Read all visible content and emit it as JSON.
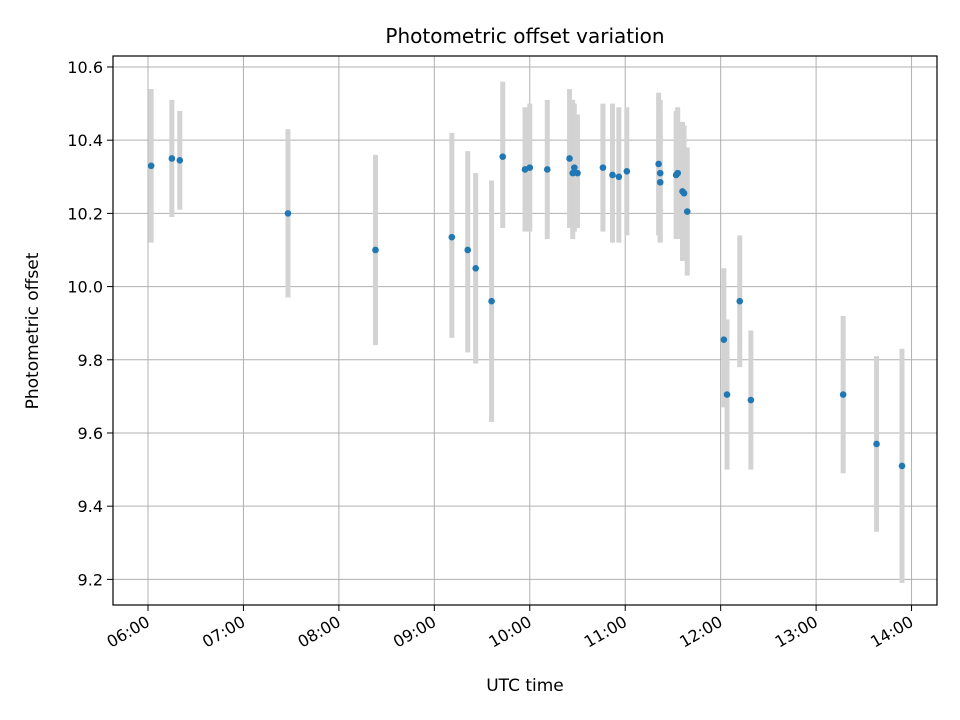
{
  "chart_data": {
    "type": "scatter",
    "title": "Photometric offset variation",
    "xlabel": "UTC time",
    "ylabel": "Photometric offset",
    "x_tick_labels": [
      "06:00",
      "07:00",
      "08:00",
      "09:00",
      "10:00",
      "11:00",
      "12:00",
      "13:00",
      "14:00"
    ],
    "y_tick_labels": [
      "9.2",
      "9.4",
      "9.6",
      "9.8",
      "10.0",
      "10.2",
      "10.4",
      "10.6"
    ],
    "xlim": [
      "05:38",
      "14:16"
    ],
    "ylim": [
      9.13,
      10.63
    ],
    "grid": true,
    "marker_color": "#1f77b4",
    "errorbar_color": "#d3d3d3",
    "points": [
      {
        "x": "06:02",
        "y": 10.33,
        "y_lo": 10.12,
        "y_hi": 10.54
      },
      {
        "x": "06:15",
        "y": 10.35,
        "y_lo": 10.19,
        "y_hi": 10.51
      },
      {
        "x": "06:20",
        "y": 10.345,
        "y_lo": 10.21,
        "y_hi": 10.48
      },
      {
        "x": "07:28",
        "y": 10.2,
        "y_lo": 9.97,
        "y_hi": 10.43
      },
      {
        "x": "08:23",
        "y": 10.1,
        "y_lo": 9.84,
        "y_hi": 10.36
      },
      {
        "x": "09:11",
        "y": 10.135,
        "y_lo": 9.86,
        "y_hi": 10.42
      },
      {
        "x": "09:21",
        "y": 10.1,
        "y_lo": 9.82,
        "y_hi": 10.37
      },
      {
        "x": "09:26",
        "y": 10.05,
        "y_lo": 9.79,
        "y_hi": 10.31
      },
      {
        "x": "09:36",
        "y": 9.96,
        "y_lo": 9.63,
        "y_hi": 10.29
      },
      {
        "x": "09:43",
        "y": 10.355,
        "y_lo": 10.16,
        "y_hi": 10.56
      },
      {
        "x": "09:57",
        "y": 10.32,
        "y_lo": 10.15,
        "y_hi": 10.49
      },
      {
        "x": "10:00",
        "y": 10.325,
        "y_lo": 10.15,
        "y_hi": 10.5
      },
      {
        "x": "10:11",
        "y": 10.32,
        "y_lo": 10.13,
        "y_hi": 10.51
      },
      {
        "x": "10:25",
        "y": 10.35,
        "y_lo": 10.16,
        "y_hi": 10.54
      },
      {
        "x": "10:27",
        "y": 10.31,
        "y_lo": 10.13,
        "y_hi": 10.51
      },
      {
        "x": "10:28",
        "y": 10.325,
        "y_lo": 10.15,
        "y_hi": 10.5
      },
      {
        "x": "10:30",
        "y": 10.31,
        "y_lo": 10.16,
        "y_hi": 10.47
      },
      {
        "x": "10:46",
        "y": 10.325,
        "y_lo": 10.15,
        "y_hi": 10.5
      },
      {
        "x": "10:52",
        "y": 10.305,
        "y_lo": 10.12,
        "y_hi": 10.5
      },
      {
        "x": "10:56",
        "y": 10.3,
        "y_lo": 10.12,
        "y_hi": 10.49
      },
      {
        "x": "11:01",
        "y": 10.315,
        "y_lo": 10.14,
        "y_hi": 10.49
      },
      {
        "x": "11:21",
        "y": 10.335,
        "y_lo": 10.14,
        "y_hi": 10.53
      },
      {
        "x": "11:22",
        "y": 10.31,
        "y_lo": 10.12,
        "y_hi": 10.51
      },
      {
        "x": "11:22",
        "y": 10.285,
        "y_lo": 10.12,
        "y_hi": 10.46
      },
      {
        "x": "11:32",
        "y": 10.305,
        "y_lo": 10.13,
        "y_hi": 10.48
      },
      {
        "x": "11:33",
        "y": 10.31,
        "y_lo": 10.13,
        "y_hi": 10.49
      },
      {
        "x": "11:36",
        "y": 10.26,
        "y_lo": 10.07,
        "y_hi": 10.45
      },
      {
        "x": "11:37",
        "y": 10.255,
        "y_lo": 10.07,
        "y_hi": 10.44
      },
      {
        "x": "11:39",
        "y": 10.205,
        "y_lo": 10.03,
        "y_hi": 10.38
      },
      {
        "x": "12:02",
        "y": 9.855,
        "y_lo": 9.67,
        "y_hi": 10.05
      },
      {
        "x": "12:04",
        "y": 9.705,
        "y_lo": 9.5,
        "y_hi": 9.91
      },
      {
        "x": "12:12",
        "y": 9.96,
        "y_lo": 9.78,
        "y_hi": 10.14
      },
      {
        "x": "12:19",
        "y": 9.69,
        "y_lo": 9.5,
        "y_hi": 9.88
      },
      {
        "x": "13:17",
        "y": 9.705,
        "y_lo": 9.49,
        "y_hi": 9.92
      },
      {
        "x": "13:38",
        "y": 9.57,
        "y_lo": 9.33,
        "y_hi": 9.81
      },
      {
        "x": "13:54",
        "y": 9.51,
        "y_lo": 9.19,
        "y_hi": 9.83
      }
    ]
  }
}
